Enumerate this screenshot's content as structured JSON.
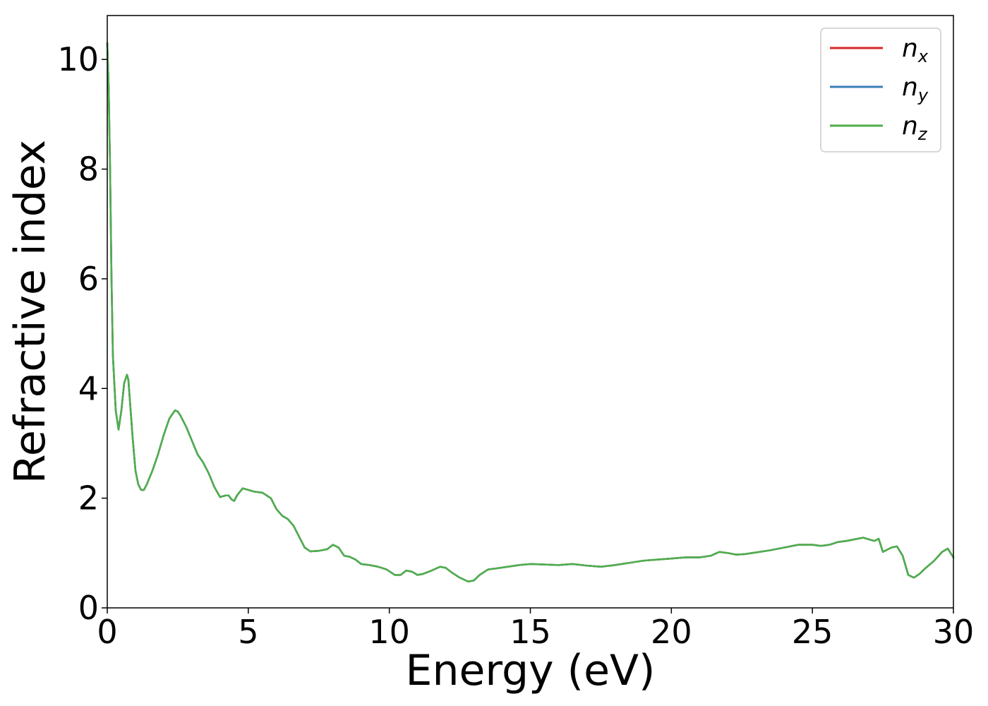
{
  "chart_data": {
    "type": "line",
    "title": "",
    "xlabel": "Energy (eV)",
    "ylabel": "Refractive index",
    "xlim": [
      0,
      30
    ],
    "ylim": [
      0,
      10.8
    ],
    "xticks": [
      0,
      5,
      10,
      15,
      20,
      25,
      30
    ],
    "yticks": [
      0,
      2,
      4,
      6,
      8,
      10
    ],
    "grid": false,
    "legend_position": "top-right",
    "series": [
      {
        "name": "n",
        "subscript": "x",
        "color": "#d62728",
        "x": [
          0.0,
          0.05,
          0.1,
          0.15,
          0.2,
          0.3,
          0.4,
          0.5,
          0.6,
          0.7,
          0.75,
          0.8,
          0.9,
          1.0,
          1.1,
          1.2,
          1.3,
          1.4,
          1.6,
          1.8,
          2.0,
          2.2,
          2.4,
          2.5,
          2.6,
          2.8,
          3.0,
          3.2,
          3.4,
          3.6,
          3.8,
          4.0,
          4.2,
          4.3,
          4.4,
          4.5,
          4.6,
          4.8,
          5.0,
          5.2,
          5.5,
          5.8,
          6.0,
          6.2,
          6.4,
          6.6,
          6.8,
          7.0,
          7.2,
          7.5,
          7.8,
          8.0,
          8.2,
          8.4,
          8.6,
          8.8,
          9.0,
          9.3,
          9.6,
          9.9,
          10.2,
          10.4,
          10.6,
          10.8,
          11.0,
          11.2,
          11.5,
          11.8,
          12.0,
          12.2,
          12.5,
          12.8,
          13.0,
          13.2,
          13.5,
          13.8,
          14.2,
          14.6,
          15.0,
          15.5,
          16.0,
          16.5,
          17.0,
          17.5,
          18.0,
          18.5,
          19.0,
          19.5,
          20.0,
          20.5,
          21.0,
          21.4,
          21.7,
          22.0,
          22.3,
          22.6,
          23.0,
          23.5,
          24.0,
          24.5,
          25.0,
          25.3,
          25.6,
          25.9,
          26.2,
          26.5,
          26.8,
          27.0,
          27.2,
          27.35,
          27.5,
          27.8,
          28.0,
          28.2,
          28.4,
          28.6,
          28.8,
          29.0,
          29.3,
          29.6,
          29.8,
          30.0
        ],
        "y": [
          10.3,
          9.5,
          8.0,
          6.0,
          4.6,
          3.6,
          3.25,
          3.6,
          4.1,
          4.25,
          4.15,
          3.8,
          3.1,
          2.5,
          2.25,
          2.15,
          2.15,
          2.25,
          2.5,
          2.8,
          3.15,
          3.45,
          3.6,
          3.58,
          3.5,
          3.3,
          3.05,
          2.8,
          2.65,
          2.45,
          2.2,
          2.02,
          2.05,
          2.05,
          1.98,
          1.95,
          2.05,
          2.18,
          2.15,
          2.12,
          2.1,
          2.0,
          1.8,
          1.68,
          1.62,
          1.5,
          1.3,
          1.1,
          1.03,
          1.04,
          1.07,
          1.15,
          1.1,
          0.95,
          0.93,
          0.88,
          0.8,
          0.78,
          0.75,
          0.7,
          0.6,
          0.6,
          0.68,
          0.66,
          0.6,
          0.62,
          0.68,
          0.75,
          0.73,
          0.65,
          0.55,
          0.48,
          0.5,
          0.6,
          0.7,
          0.72,
          0.75,
          0.78,
          0.8,
          0.79,
          0.78,
          0.8,
          0.77,
          0.75,
          0.78,
          0.82,
          0.86,
          0.88,
          0.9,
          0.92,
          0.92,
          0.95,
          1.02,
          1.0,
          0.97,
          0.98,
          1.01,
          1.05,
          1.1,
          1.15,
          1.15,
          1.13,
          1.15,
          1.2,
          1.22,
          1.25,
          1.28,
          1.25,
          1.22,
          1.26,
          1.02,
          1.1,
          1.12,
          0.95,
          0.6,
          0.55,
          0.62,
          0.72,
          0.85,
          1.02,
          1.08,
          0.92
        ]
      },
      {
        "name": "n",
        "subscript": "y",
        "color": "#377eb8",
        "x": [
          0.0,
          0.05,
          0.1,
          0.15,
          0.2,
          0.3,
          0.4,
          0.5,
          0.6,
          0.7,
          0.75,
          0.8,
          0.9,
          1.0,
          1.1,
          1.2,
          1.3,
          1.4,
          1.6,
          1.8,
          2.0,
          2.2,
          2.4,
          2.5,
          2.6,
          2.8,
          3.0,
          3.2,
          3.4,
          3.6,
          3.8,
          4.0,
          4.2,
          4.3,
          4.4,
          4.5,
          4.6,
          4.8,
          5.0,
          5.2,
          5.5,
          5.8,
          6.0,
          6.2,
          6.4,
          6.6,
          6.8,
          7.0,
          7.2,
          7.5,
          7.8,
          8.0,
          8.2,
          8.4,
          8.6,
          8.8,
          9.0,
          9.3,
          9.6,
          9.9,
          10.2,
          10.4,
          10.6,
          10.8,
          11.0,
          11.2,
          11.5,
          11.8,
          12.0,
          12.2,
          12.5,
          12.8,
          13.0,
          13.2,
          13.5,
          13.8,
          14.2,
          14.6,
          15.0,
          15.5,
          16.0,
          16.5,
          17.0,
          17.5,
          18.0,
          18.5,
          19.0,
          19.5,
          20.0,
          20.5,
          21.0,
          21.4,
          21.7,
          22.0,
          22.3,
          22.6,
          23.0,
          23.5,
          24.0,
          24.5,
          25.0,
          25.3,
          25.6,
          25.9,
          26.2,
          26.5,
          26.8,
          27.0,
          27.2,
          27.35,
          27.5,
          27.8,
          28.0,
          28.2,
          28.4,
          28.6,
          28.8,
          29.0,
          29.3,
          29.6,
          29.8,
          30.0
        ],
        "y": [
          10.3,
          9.5,
          8.0,
          6.0,
          4.6,
          3.6,
          3.25,
          3.6,
          4.1,
          4.25,
          4.15,
          3.8,
          3.1,
          2.5,
          2.25,
          2.15,
          2.15,
          2.25,
          2.5,
          2.8,
          3.15,
          3.45,
          3.6,
          3.58,
          3.5,
          3.3,
          3.05,
          2.8,
          2.65,
          2.45,
          2.2,
          2.02,
          2.05,
          2.05,
          1.98,
          1.95,
          2.05,
          2.18,
          2.15,
          2.12,
          2.1,
          2.0,
          1.8,
          1.68,
          1.62,
          1.5,
          1.3,
          1.1,
          1.03,
          1.04,
          1.07,
          1.15,
          1.1,
          0.95,
          0.93,
          0.88,
          0.8,
          0.78,
          0.75,
          0.7,
          0.6,
          0.6,
          0.68,
          0.66,
          0.6,
          0.62,
          0.68,
          0.75,
          0.73,
          0.65,
          0.55,
          0.48,
          0.5,
          0.6,
          0.7,
          0.72,
          0.75,
          0.78,
          0.8,
          0.79,
          0.78,
          0.8,
          0.77,
          0.75,
          0.78,
          0.82,
          0.86,
          0.88,
          0.9,
          0.92,
          0.92,
          0.95,
          1.02,
          1.0,
          0.97,
          0.98,
          1.01,
          1.05,
          1.1,
          1.15,
          1.15,
          1.13,
          1.15,
          1.2,
          1.22,
          1.25,
          1.28,
          1.25,
          1.22,
          1.26,
          1.02,
          1.1,
          1.12,
          0.95,
          0.6,
          0.55,
          0.62,
          0.72,
          0.85,
          1.02,
          1.08,
          0.92
        ]
      },
      {
        "name": "n",
        "subscript": "z",
        "color": "#4daf4a",
        "x": [
          0.0,
          0.05,
          0.1,
          0.15,
          0.2,
          0.3,
          0.4,
          0.5,
          0.6,
          0.7,
          0.75,
          0.8,
          0.9,
          1.0,
          1.1,
          1.2,
          1.3,
          1.4,
          1.6,
          1.8,
          2.0,
          2.2,
          2.4,
          2.5,
          2.6,
          2.8,
          3.0,
          3.2,
          3.4,
          3.6,
          3.8,
          4.0,
          4.2,
          4.3,
          4.4,
          4.5,
          4.6,
          4.8,
          5.0,
          5.2,
          5.5,
          5.8,
          6.0,
          6.2,
          6.4,
          6.6,
          6.8,
          7.0,
          7.2,
          7.5,
          7.8,
          8.0,
          8.2,
          8.4,
          8.6,
          8.8,
          9.0,
          9.3,
          9.6,
          9.9,
          10.2,
          10.4,
          10.6,
          10.8,
          11.0,
          11.2,
          11.5,
          11.8,
          12.0,
          12.2,
          12.5,
          12.8,
          13.0,
          13.2,
          13.5,
          13.8,
          14.2,
          14.6,
          15.0,
          15.5,
          16.0,
          16.5,
          17.0,
          17.5,
          18.0,
          18.5,
          19.0,
          19.5,
          20.0,
          20.5,
          21.0,
          21.4,
          21.7,
          22.0,
          22.3,
          22.6,
          23.0,
          23.5,
          24.0,
          24.5,
          25.0,
          25.3,
          25.6,
          25.9,
          26.2,
          26.5,
          26.8,
          27.0,
          27.2,
          27.35,
          27.5,
          27.8,
          28.0,
          28.2,
          28.4,
          28.6,
          28.8,
          29.0,
          29.3,
          29.6,
          29.8,
          30.0
        ],
        "y": [
          10.3,
          9.5,
          8.0,
          6.0,
          4.6,
          3.6,
          3.25,
          3.6,
          4.1,
          4.25,
          4.15,
          3.8,
          3.1,
          2.5,
          2.25,
          2.15,
          2.15,
          2.25,
          2.5,
          2.8,
          3.15,
          3.45,
          3.6,
          3.58,
          3.5,
          3.3,
          3.05,
          2.8,
          2.65,
          2.45,
          2.2,
          2.02,
          2.05,
          2.05,
          1.98,
          1.95,
          2.05,
          2.18,
          2.15,
          2.12,
          2.1,
          2.0,
          1.8,
          1.68,
          1.62,
          1.5,
          1.3,
          1.1,
          1.03,
          1.04,
          1.07,
          1.15,
          1.1,
          0.95,
          0.93,
          0.88,
          0.8,
          0.78,
          0.75,
          0.7,
          0.6,
          0.6,
          0.68,
          0.66,
          0.6,
          0.62,
          0.68,
          0.75,
          0.73,
          0.65,
          0.55,
          0.48,
          0.5,
          0.6,
          0.7,
          0.72,
          0.75,
          0.78,
          0.8,
          0.79,
          0.78,
          0.8,
          0.77,
          0.75,
          0.78,
          0.82,
          0.86,
          0.88,
          0.9,
          0.92,
          0.92,
          0.95,
          1.02,
          1.0,
          0.97,
          0.98,
          1.01,
          1.05,
          1.1,
          1.15,
          1.15,
          1.13,
          1.15,
          1.2,
          1.22,
          1.25,
          1.28,
          1.25,
          1.22,
          1.26,
          1.02,
          1.1,
          1.12,
          0.95,
          0.6,
          0.55,
          0.62,
          0.72,
          0.85,
          1.02,
          1.08,
          0.92
        ]
      }
    ]
  }
}
